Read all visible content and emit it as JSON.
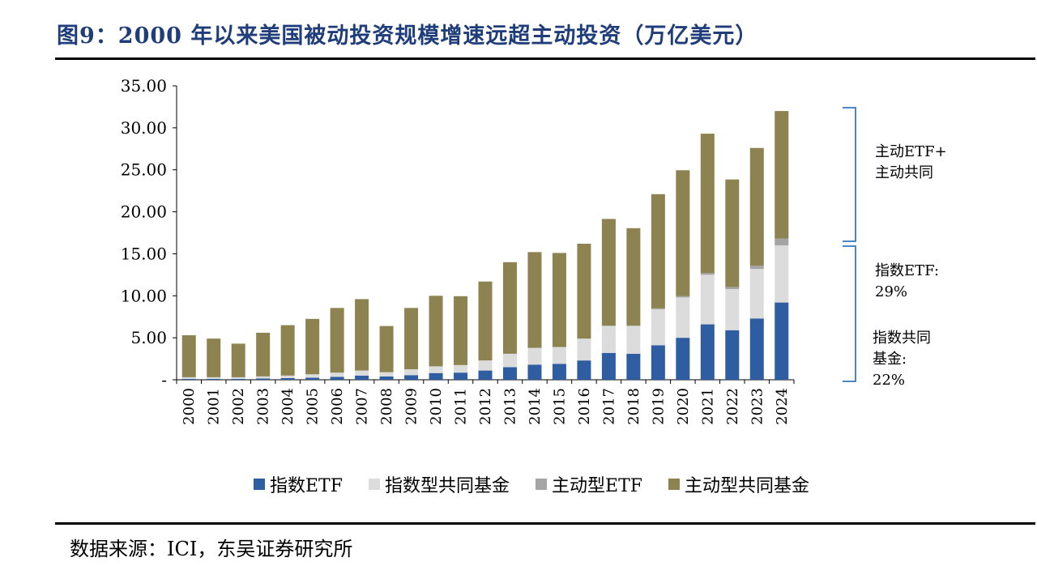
{
  "title": "图9：2000 年以来美国被动投资规模增速远超主动投资（万亿美元）",
  "source": "数据来源：ICI，东吴证券研究所",
  "annotations": {
    "active": [
      "主动ETF+",
      "主动共同"
    ],
    "index_etf": [
      "指数ETF:",
      "29%"
    ],
    "index_fund": [
      "指数共同",
      "基金:",
      "22%"
    ]
  },
  "chart_data": {
    "type": "bar",
    "stacked": true,
    "categories": [
      "2000",
      "2001",
      "2002",
      "2003",
      "2004",
      "2005",
      "2006",
      "2007",
      "2008",
      "2009",
      "2010",
      "2011",
      "2012",
      "2013",
      "2014",
      "2015",
      "2016",
      "2017",
      "2018",
      "2019",
      "2020",
      "2021",
      "2022",
      "2023",
      "2024"
    ],
    "y_tick_labels": [
      "-",
      "5.00",
      "10.00",
      "15.00",
      "20.00",
      "25.00",
      "30.00",
      "35.00"
    ],
    "ylim": [
      0,
      35
    ],
    "grid": false,
    "legend_position": "bottom",
    "series": [
      {
        "name": "指数ETF",
        "color": "#2e5da1",
        "values": [
          0.1,
          0.1,
          0.1,
          0.15,
          0.2,
          0.25,
          0.35,
          0.5,
          0.4,
          0.55,
          0.8,
          0.85,
          1.1,
          1.5,
          1.8,
          1.9,
          2.3,
          3.2,
          3.1,
          4.1,
          5.0,
          6.6,
          5.9,
          7.3,
          9.2
        ]
      },
      {
        "name": "指数型共同基金",
        "color": "#dcdcdc",
        "values": [
          0.2,
          0.2,
          0.2,
          0.25,
          0.3,
          0.4,
          0.5,
          0.6,
          0.5,
          0.7,
          0.8,
          0.9,
          1.2,
          1.6,
          2.0,
          2.0,
          2.6,
          3.2,
          3.3,
          4.3,
          4.8,
          5.9,
          4.9,
          5.9,
          6.8
        ]
      },
      {
        "name": "主动型ETF",
        "color": "#a5a5a5",
        "values": [
          0,
          0,
          0,
          0,
          0,
          0,
          0,
          0,
          0,
          0,
          0,
          0,
          0,
          0,
          0,
          0,
          0,
          0.05,
          0.05,
          0.1,
          0.15,
          0.2,
          0.25,
          0.4,
          0.8
        ]
      },
      {
        "name": "主动型共同基金",
        "color": "#8c8350",
        "values": [
          5.0,
          4.6,
          4.0,
          5.2,
          6.0,
          6.6,
          7.7,
          8.5,
          5.5,
          7.3,
          8.4,
          8.2,
          9.4,
          10.9,
          11.4,
          11.2,
          11.3,
          12.7,
          11.6,
          13.6,
          15.0,
          16.6,
          12.8,
          14.0,
          15.2
        ]
      }
    ]
  }
}
